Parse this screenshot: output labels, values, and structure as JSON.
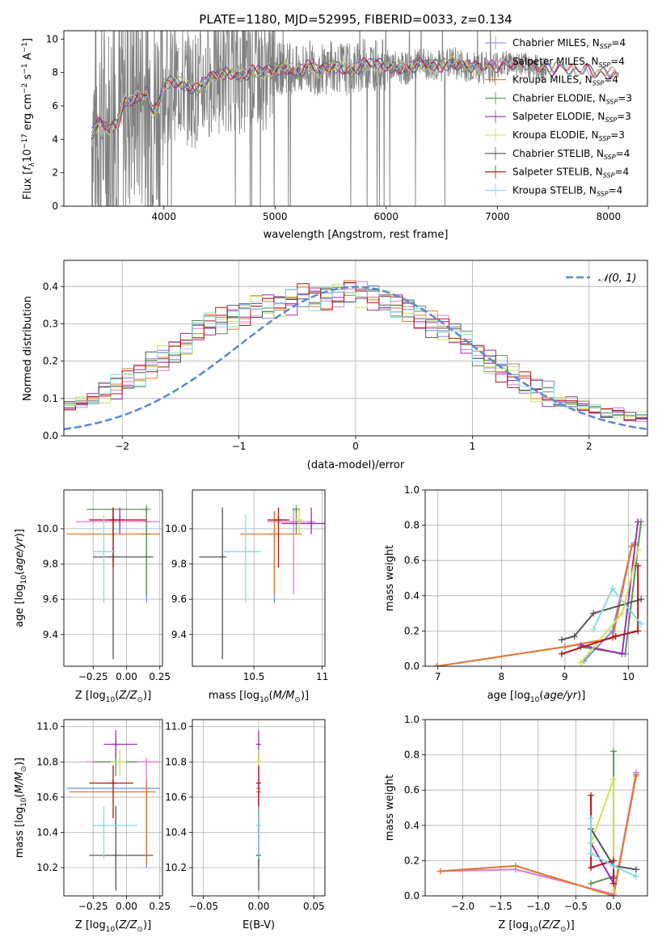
{
  "title": "PLATE=1180, MJD=52995, FIBERID=0033, z=0.134",
  "colors": {
    "Chabrier MILES": "#7b86e0",
    "Salpeter MILES": "#e07bd4",
    "Kroupa MILES": "#e07b2a",
    "Chabrier ELODIE": "#5f8f5f",
    "Salpeter ELODIE": "#9a2fb2",
    "Kroupa ELODIE": "#cfe05a",
    "Chabrier STELIB": "#555555",
    "Salpeter STELIB": "#b0151b",
    "Kroupa STELIB": "#86dce0",
    "data": "#808080",
    "normal": "#5a88d6"
  },
  "chart_data": [
    {
      "id": "spectrum",
      "type": "line",
      "xlabel": "wavelength [Angstrom, rest frame]",
      "ylabel": "Flux [f_λ 10^-17 erg cm^-2 s^-1 A^-1]",
      "xlim": [
        3100,
        8350
      ],
      "ylim": [
        0,
        10.5
      ],
      "xticks": [
        4000,
        5000,
        6000,
        7000,
        8000
      ],
      "yticks": [
        0,
        2,
        4,
        6,
        8,
        10
      ],
      "grid": false,
      "legend_position": "top-right",
      "legend": [
        "Chabrier MILES, N_SSP=4",
        "Salpeter MILES, N_SSP=4",
        "Kroupa MILES, N_SSP=4",
        "Chabrier ELODIE, N_SSP=3",
        "Salpeter ELODIE, N_SSP=3",
        "Kroupa ELODIE, N_SSP=3",
        "Chabrier STELIB, N_SSP=4",
        "Salpeter STELIB, N_SSP=4",
        "Kroupa STELIB, N_SSP=4"
      ],
      "model_x": [
        3350,
        3420,
        3500,
        3580,
        3650,
        3700,
        3750,
        3800,
        3850,
        3900,
        3950,
        4000,
        4100,
        4200,
        4300,
        4400,
        4500,
        4600,
        4700,
        4800,
        4900,
        5000,
        5100,
        5200,
        5300,
        5400,
        5500,
        5600,
        5700,
        5800,
        5900,
        6000,
        6100,
        6200,
        6300,
        6400,
        6500,
        6600,
        6700,
        6800,
        6900,
        7000,
        7100,
        7200,
        7300,
        7400,
        7500,
        7600,
        7700,
        7800,
        7900,
        8000,
        8100
      ],
      "model_y": [
        4.3,
        5.0,
        4.6,
        4.9,
        6.4,
        6.2,
        6.6,
        6.4,
        6.8,
        5.6,
        6.0,
        7.3,
        7.5,
        7.2,
        7.0,
        7.6,
        7.9,
        8.0,
        7.8,
        8.1,
        8.0,
        8.2,
        8.3,
        8.0,
        8.4,
        8.1,
        8.4,
        8.3,
        8.1,
        8.5,
        8.5,
        8.4,
        8.3,
        8.2,
        8.5,
        8.4,
        8.4,
        8.6,
        8.4,
        8.3,
        8.3,
        8.4,
        8.6,
        8.5,
        8.4,
        8.2,
        8.2,
        8.4,
        8.1,
        8.2,
        7.9,
        8.0,
        7.8
      ],
      "data_x_range": [
        3350,
        7450
      ]
    },
    {
      "id": "residuals",
      "type": "line",
      "xlabel": "(data-model)/error",
      "ylabel": "Normed distribution",
      "xlim": [
        -2.5,
        2.5
      ],
      "ylim": [
        0,
        0.47
      ],
      "xticks": [
        -2,
        -1,
        0,
        1,
        2
      ],
      "yticks": [
        0.0,
        0.1,
        0.2,
        0.3,
        0.4
      ],
      "grid": true,
      "legend_position": "top-right",
      "normal_label": "𝒩(0, 1)",
      "bin_width": 0.1,
      "hist_base": [
        0.03,
        0.03,
        0.04,
        0.04,
        0.05,
        0.05,
        0.06,
        0.07,
        0.08,
        0.09,
        0.1,
        0.12,
        0.13,
        0.15,
        0.16,
        0.19,
        0.21,
        0.23,
        0.25,
        0.28,
        0.3,
        0.31,
        0.32,
        0.33,
        0.35,
        0.35,
        0.35,
        0.36,
        0.38,
        0.37,
        0.37,
        0.38,
        0.39,
        0.38,
        0.37,
        0.36,
        0.35,
        0.34,
        0.32,
        0.3,
        0.29,
        0.27,
        0.25,
        0.22,
        0.2,
        0.18,
        0.16,
        0.14,
        0.12,
        0.11,
        0.09,
        0.09,
        0.08,
        0.07,
        0.06,
        0.06,
        0.05,
        0.05,
        0.05,
        0.04,
        0.04,
        0.04,
        0.03,
        0.03,
        0.03,
        0.03,
        0.03
      ],
      "hist_start": -3.3
    },
    {
      "id": "age-Z",
      "type": "scatter",
      "xlabel": "Z [log10(Z/Z⊙)]",
      "ylabel": "age [log10(age/yr)]",
      "xlim": [
        -0.47,
        0.27
      ],
      "ylim": [
        9.22,
        10.22
      ],
      "xticks": [
        -0.25,
        0.0,
        0.25
      ],
      "xticklabels": [
        "−0.25",
        "0.00",
        "0.25"
      ],
      "yticks": [
        9.4,
        9.6,
        9.8,
        10.0
      ],
      "grid": true,
      "points": [
        {
          "s": "Chabrier MILES",
          "x": 0.15,
          "y": 9.97,
          "ex": [
            0.15,
            0.15
          ],
          "ey": [
            9.58,
            10.1
          ]
        },
        {
          "s": "Salpeter MILES",
          "x": 0.15,
          "y": 10.04,
          "ex": [
            -0.38,
            0.25
          ],
          "ey": [
            9.62,
            10.12
          ]
        },
        {
          "s": "Kroupa MILES",
          "x": 0.15,
          "y": 9.97,
          "ex": [
            -0.45,
            0.25
          ],
          "ey": [
            9.62,
            10.1
          ]
        },
        {
          "s": "Chabrier ELODIE",
          "x": 0.15,
          "y": 10.11,
          "ex": [
            -0.3,
            0.15
          ],
          "ey": [
            9.62,
            10.12
          ]
        },
        {
          "s": "Salpeter ELODIE",
          "x": -0.05,
          "y": 10.05,
          "ex": [
            -0.05,
            -0.05
          ],
          "ey": [
            9.97,
            10.12
          ]
        },
        {
          "s": "Kroupa ELODIE",
          "x": -0.1,
          "y": 10.05,
          "ex": [
            -0.1,
            -0.1
          ],
          "ey": [
            9.97,
            10.12
          ]
        },
        {
          "s": "Chabrier STELIB",
          "x": -0.1,
          "y": 9.84,
          "ex": [
            -0.25,
            0.2
          ],
          "ey": [
            9.26,
            10.12
          ]
        },
        {
          "s": "Salpeter STELIB",
          "x": -0.1,
          "y": 10.05,
          "ex": [
            -0.28,
            0.15
          ],
          "ey": [
            9.78,
            10.12
          ]
        },
        {
          "s": "Kroupa STELIB",
          "x": -0.17,
          "y": 9.87,
          "ex": [
            -0.25,
            -0.08
          ],
          "ey": [
            9.58,
            10.08
          ]
        }
      ]
    },
    {
      "id": "age-mass",
      "type": "scatter",
      "xlabel": "mass [log10(M/M⊙)]",
      "xlim": [
        10.05,
        11.02
      ],
      "ylim": [
        9.22,
        10.22
      ],
      "xticks": [
        10.5,
        11.0
      ],
      "yticks": [
        9.4,
        9.6,
        9.8,
        10.0
      ],
      "grid": true,
      "points": [
        {
          "s": "Chabrier MILES",
          "x": 10.65,
          "y": 9.97,
          "ex": [
            10.65,
            10.65
          ],
          "ey": [
            9.58,
            10.1
          ]
        },
        {
          "s": "Salpeter MILES",
          "x": 10.79,
          "y": 10.04,
          "ex": [
            10.6,
            10.95
          ],
          "ey": [
            9.63,
            10.12
          ]
        },
        {
          "s": "Kroupa MILES",
          "x": 10.65,
          "y": 9.97,
          "ex": [
            10.4,
            10.85
          ],
          "ey": [
            9.63,
            10.1
          ]
        },
        {
          "s": "Chabrier ELODIE",
          "x": 10.81,
          "y": 10.11,
          "ex": [
            10.81,
            10.81
          ],
          "ey": [
            9.97,
            10.12
          ]
        },
        {
          "s": "Salpeter ELODIE",
          "x": 10.92,
          "y": 10.03,
          "ex": [
            10.7,
            11.02
          ],
          "ey": [
            9.97,
            10.12
          ]
        },
        {
          "s": "Kroupa ELODIE",
          "x": 10.83,
          "y": 10.05,
          "ex": [
            10.83,
            10.83
          ],
          "ey": [
            9.97,
            10.12
          ]
        },
        {
          "s": "Chabrier STELIB",
          "x": 10.27,
          "y": 9.84,
          "ex": [
            10.1,
            10.27
          ],
          "ey": [
            9.26,
            10.12
          ]
        },
        {
          "s": "Salpeter STELIB",
          "x": 10.68,
          "y": 10.05,
          "ex": [
            10.6,
            10.76
          ],
          "ey": [
            9.78,
            10.12
          ]
        },
        {
          "s": "Kroupa STELIB",
          "x": 10.44,
          "y": 9.87,
          "ex": [
            10.28,
            10.55
          ],
          "ey": [
            9.58,
            10.08
          ]
        }
      ]
    },
    {
      "id": "weight-age",
      "type": "line",
      "xlabel": "age [log10(age/yr)]",
      "ylabel": "mass weight",
      "xlim": [
        6.8,
        10.3
      ],
      "ylim": [
        0,
        1
      ],
      "xticks": [
        7,
        8,
        9,
        10
      ],
      "yticks": [
        0.0,
        0.2,
        0.4,
        0.6,
        0.8,
        1.0
      ],
      "grid": true,
      "series": [
        {
          "s": "Chabrier MILES",
          "x": [
            9.3,
            9.75,
            10.05,
            10.1
          ],
          "y": [
            0.03,
            0.2,
            0.68,
            0.7
          ]
        },
        {
          "s": "Salpeter MILES",
          "x": [
            6.98,
            9.0,
            9.75,
            10.05,
            10.1
          ],
          "y": [
            0.0,
            0.11,
            0.16,
            0.68,
            0.7
          ]
        },
        {
          "s": "Kroupa MILES",
          "x": [
            6.98,
            9.0,
            9.75,
            10.05,
            10.1
          ],
          "y": [
            0.0,
            0.11,
            0.16,
            0.68,
            0.69
          ]
        },
        {
          "s": "Chabrier ELODIE",
          "x": [
            9.25,
            9.95,
            10.2
          ],
          "y": [
            0.11,
            0.07,
            0.82
          ]
        },
        {
          "s": "Salpeter ELODIE",
          "x": [
            9.25,
            9.9,
            10.15
          ],
          "y": [
            0.12,
            0.07,
            0.82
          ]
        },
        {
          "s": "Kroupa ELODIE",
          "x": [
            9.25,
            9.9,
            10.15
          ],
          "y": [
            0.02,
            0.3,
            0.66
          ]
        },
        {
          "s": "Chabrier STELIB",
          "x": [
            8.95,
            9.15,
            9.45,
            10.2
          ],
          "y": [
            0.15,
            0.17,
            0.3,
            0.38
          ]
        },
        {
          "s": "Salpeter STELIB",
          "x": [
            8.95,
            9.8,
            10.15,
            10.15
          ],
          "y": [
            0.07,
            0.17,
            0.2,
            0.57
          ]
        },
        {
          "s": "Kroupa STELIB",
          "x": [
            9.45,
            9.75,
            10.2
          ],
          "y": [
            0.21,
            0.44,
            0.24
          ]
        }
      ]
    },
    {
      "id": "mass-Z",
      "type": "scatter",
      "xlabel": "Z [log10(Z/Z⊙)]",
      "ylabel": "mass [log10(M/M⊙)]",
      "xlim": [
        -0.47,
        0.27
      ],
      "ylim": [
        10.04,
        11.04
      ],
      "xticks": [
        -0.25,
        0.0,
        0.25
      ],
      "xticklabels": [
        "−0.25",
        "0.00",
        "0.25"
      ],
      "yticks": [
        10.2,
        10.4,
        10.6,
        10.8,
        11.0
      ],
      "grid": true,
      "points": [
        {
          "s": "Chabrier MILES",
          "x": 0.15,
          "y": 10.65,
          "ex": [
            -0.45,
            0.25
          ],
          "ey": [
            10.2,
            10.7
          ]
        },
        {
          "s": "Salpeter MILES",
          "x": 0.15,
          "y": 10.8,
          "ex": [
            -0.3,
            0.25
          ],
          "ey": [
            10.25,
            10.82
          ]
        },
        {
          "s": "Kroupa MILES",
          "x": 0.15,
          "y": 10.63,
          "ex": [
            -0.43,
            0.22
          ],
          "ey": [
            10.22,
            10.69
          ]
        },
        {
          "s": "Chabrier ELODIE",
          "x": -0.08,
          "y": 10.8,
          "ex": [
            -0.25,
            0.08
          ],
          "ey": [
            10.72,
            10.87
          ]
        },
        {
          "s": "Salpeter ELODIE",
          "x": -0.08,
          "y": 10.9,
          "ex": [
            -0.17,
            0.08
          ],
          "ey": [
            10.82,
            10.98
          ]
        },
        {
          "s": "Kroupa ELODIE",
          "x": -0.05,
          "y": 10.8,
          "ex": [
            -0.12,
            0.0
          ],
          "ey": [
            10.72,
            10.87
          ]
        },
        {
          "s": "Chabrier STELIB",
          "x": -0.08,
          "y": 10.27,
          "ex": [
            -0.28,
            0.2
          ],
          "ey": [
            10.07,
            10.55
          ]
        },
        {
          "s": "Salpeter STELIB",
          "x": -0.1,
          "y": 10.68,
          "ex": [
            -0.28,
            0.05
          ],
          "ey": [
            10.48,
            10.78
          ]
        },
        {
          "s": "Kroupa STELIB",
          "x": -0.17,
          "y": 10.44,
          "ex": [
            -0.25,
            0.08
          ],
          "ey": [
            10.25,
            10.55
          ]
        }
      ]
    },
    {
      "id": "mass-EBV",
      "type": "scatter",
      "xlabel": "E(B-V)",
      "xlim": [
        -0.06,
        0.06
      ],
      "ylim": [
        10.04,
        11.04
      ],
      "xticks": [
        -0.05,
        0.0,
        0.05
      ],
      "xticklabels": [
        "−0.05",
        "0.00",
        "0.05"
      ],
      "yticks": [
        10.2,
        10.4,
        10.6,
        10.8,
        11.0
      ],
      "grid": true,
      "points": [
        {
          "s": "Chabrier MILES",
          "x": 0.0,
          "y": 10.65,
          "ex": [
            0.0,
            0.0
          ],
          "ey": [
            10.2,
            10.7
          ]
        },
        {
          "s": "Salpeter MILES",
          "x": 0.0,
          "y": 10.8,
          "ex": [
            0.0,
            0.0
          ],
          "ey": [
            10.25,
            10.82
          ]
        },
        {
          "s": "Kroupa MILES",
          "x": 0.0,
          "y": 10.63,
          "ex": [
            0.0,
            0.0
          ],
          "ey": [
            10.22,
            10.69
          ]
        },
        {
          "s": "Chabrier ELODIE",
          "x": 0.0,
          "y": 10.8,
          "ex": [
            0.0,
            0.0
          ],
          "ey": [
            10.72,
            10.87
          ]
        },
        {
          "s": "Salpeter ELODIE",
          "x": 0.0,
          "y": 10.9,
          "ex": [
            0.0,
            0.0
          ],
          "ey": [
            10.82,
            10.98
          ]
        },
        {
          "s": "Kroupa ELODIE",
          "x": 0.0,
          "y": 10.8,
          "ex": [
            0.0,
            0.0
          ],
          "ey": [
            10.72,
            10.87
          ]
        },
        {
          "s": "Chabrier STELIB",
          "x": 0.0,
          "y": 10.27,
          "ex": [
            0.0,
            0.0
          ],
          "ey": [
            10.07,
            10.55
          ]
        },
        {
          "s": "Salpeter STELIB",
          "x": 0.0,
          "y": 10.68,
          "ex": [
            0.0,
            0.0
          ],
          "ey": [
            10.48,
            10.78
          ]
        },
        {
          "s": "Kroupa STELIB",
          "x": 0.0,
          "y": 10.44,
          "ex": [
            0.0,
            0.0
          ],
          "ey": [
            10.25,
            10.55
          ]
        }
      ]
    },
    {
      "id": "weight-Z",
      "type": "line",
      "xlabel": "Z [log10(Z/Z⊙)]",
      "ylabel": "mass weight",
      "xlim": [
        -2.5,
        0.45
      ],
      "ylim": [
        0,
        1
      ],
      "xticks": [
        -2.0,
        -1.5,
        -1.0,
        -0.5,
        0.0
      ],
      "xticklabels": [
        "−2.0",
        "−1.5",
        "−1.0",
        "−0.5",
        "0.0"
      ],
      "yticks": [
        0.0,
        0.2,
        0.4,
        0.6,
        0.8,
        1.0
      ],
      "grid": true,
      "series": [
        {
          "s": "Chabrier MILES",
          "x": [
            -2.3,
            -1.3,
            0.0,
            0.3
          ],
          "y": [
            0.14,
            0.17,
            0.0,
            0.69
          ]
        },
        {
          "s": "Salpeter MILES",
          "x": [
            -2.3,
            -1.3,
            0.0,
            0.3
          ],
          "y": [
            0.14,
            0.15,
            0.01,
            0.7
          ]
        },
        {
          "s": "Kroupa MILES",
          "x": [
            -2.3,
            -1.3,
            0.0,
            0.3
          ],
          "y": [
            0.14,
            0.17,
            0.0,
            0.68
          ]
        },
        {
          "s": "Chabrier ELODIE",
          "x": [
            -0.3,
            0.0,
            0.0
          ],
          "y": [
            0.07,
            0.11,
            0.82
          ]
        },
        {
          "s": "Salpeter ELODIE",
          "x": [
            -0.3,
            0.0,
            0.0
          ],
          "y": [
            0.3,
            0.07,
            0.1
          ]
        },
        {
          "s": "Kroupa ELODIE",
          "x": [
            -0.3,
            0.0,
            0.0
          ],
          "y": [
            0.3,
            0.66,
            0.03
          ]
        },
        {
          "s": "Chabrier STELIB",
          "x": [
            -0.3,
            0.0,
            0.3
          ],
          "y": [
            0.38,
            0.17,
            0.15
          ]
        },
        {
          "s": "Salpeter STELIB",
          "x": [
            -0.3,
            -0.3,
            0.0,
            0.0
          ],
          "y": [
            0.57,
            0.16,
            0.2,
            0.07
          ]
        },
        {
          "s": "Kroupa STELIB",
          "x": [
            -0.3,
            -0.3,
            0.0,
            0.3
          ],
          "y": [
            0.44,
            0.24,
            0.17,
            0.11
          ]
        }
      ]
    }
  ]
}
